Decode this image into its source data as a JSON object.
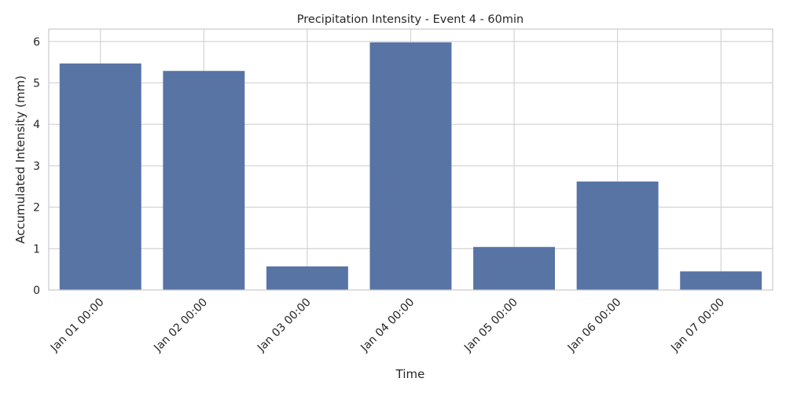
{
  "chart_data": {
    "type": "bar",
    "title": "Precipitation Intensity - Event 4 - 60min",
    "xlabel": "Time",
    "ylabel": "Accumulated Intensity (mm)",
    "categories": [
      "Jan 01 00:00",
      "Jan 02 00:00",
      "Jan 03 00:00",
      "Jan 04 00:00",
      "Jan 05 00:00",
      "Jan 06 00:00",
      "Jan 07 00:00"
    ],
    "values": [
      5.47,
      5.29,
      0.57,
      5.98,
      1.04,
      2.62,
      0.45
    ],
    "ylim": [
      0,
      6.3
    ],
    "yticks": [
      0,
      1,
      2,
      3,
      4,
      5,
      6
    ],
    "grid": true,
    "colors": {
      "bar": "#5874a4",
      "grid": "#d0d0d0",
      "frame": "#cccccc",
      "text": "#262626",
      "background": "#ffffff"
    }
  }
}
